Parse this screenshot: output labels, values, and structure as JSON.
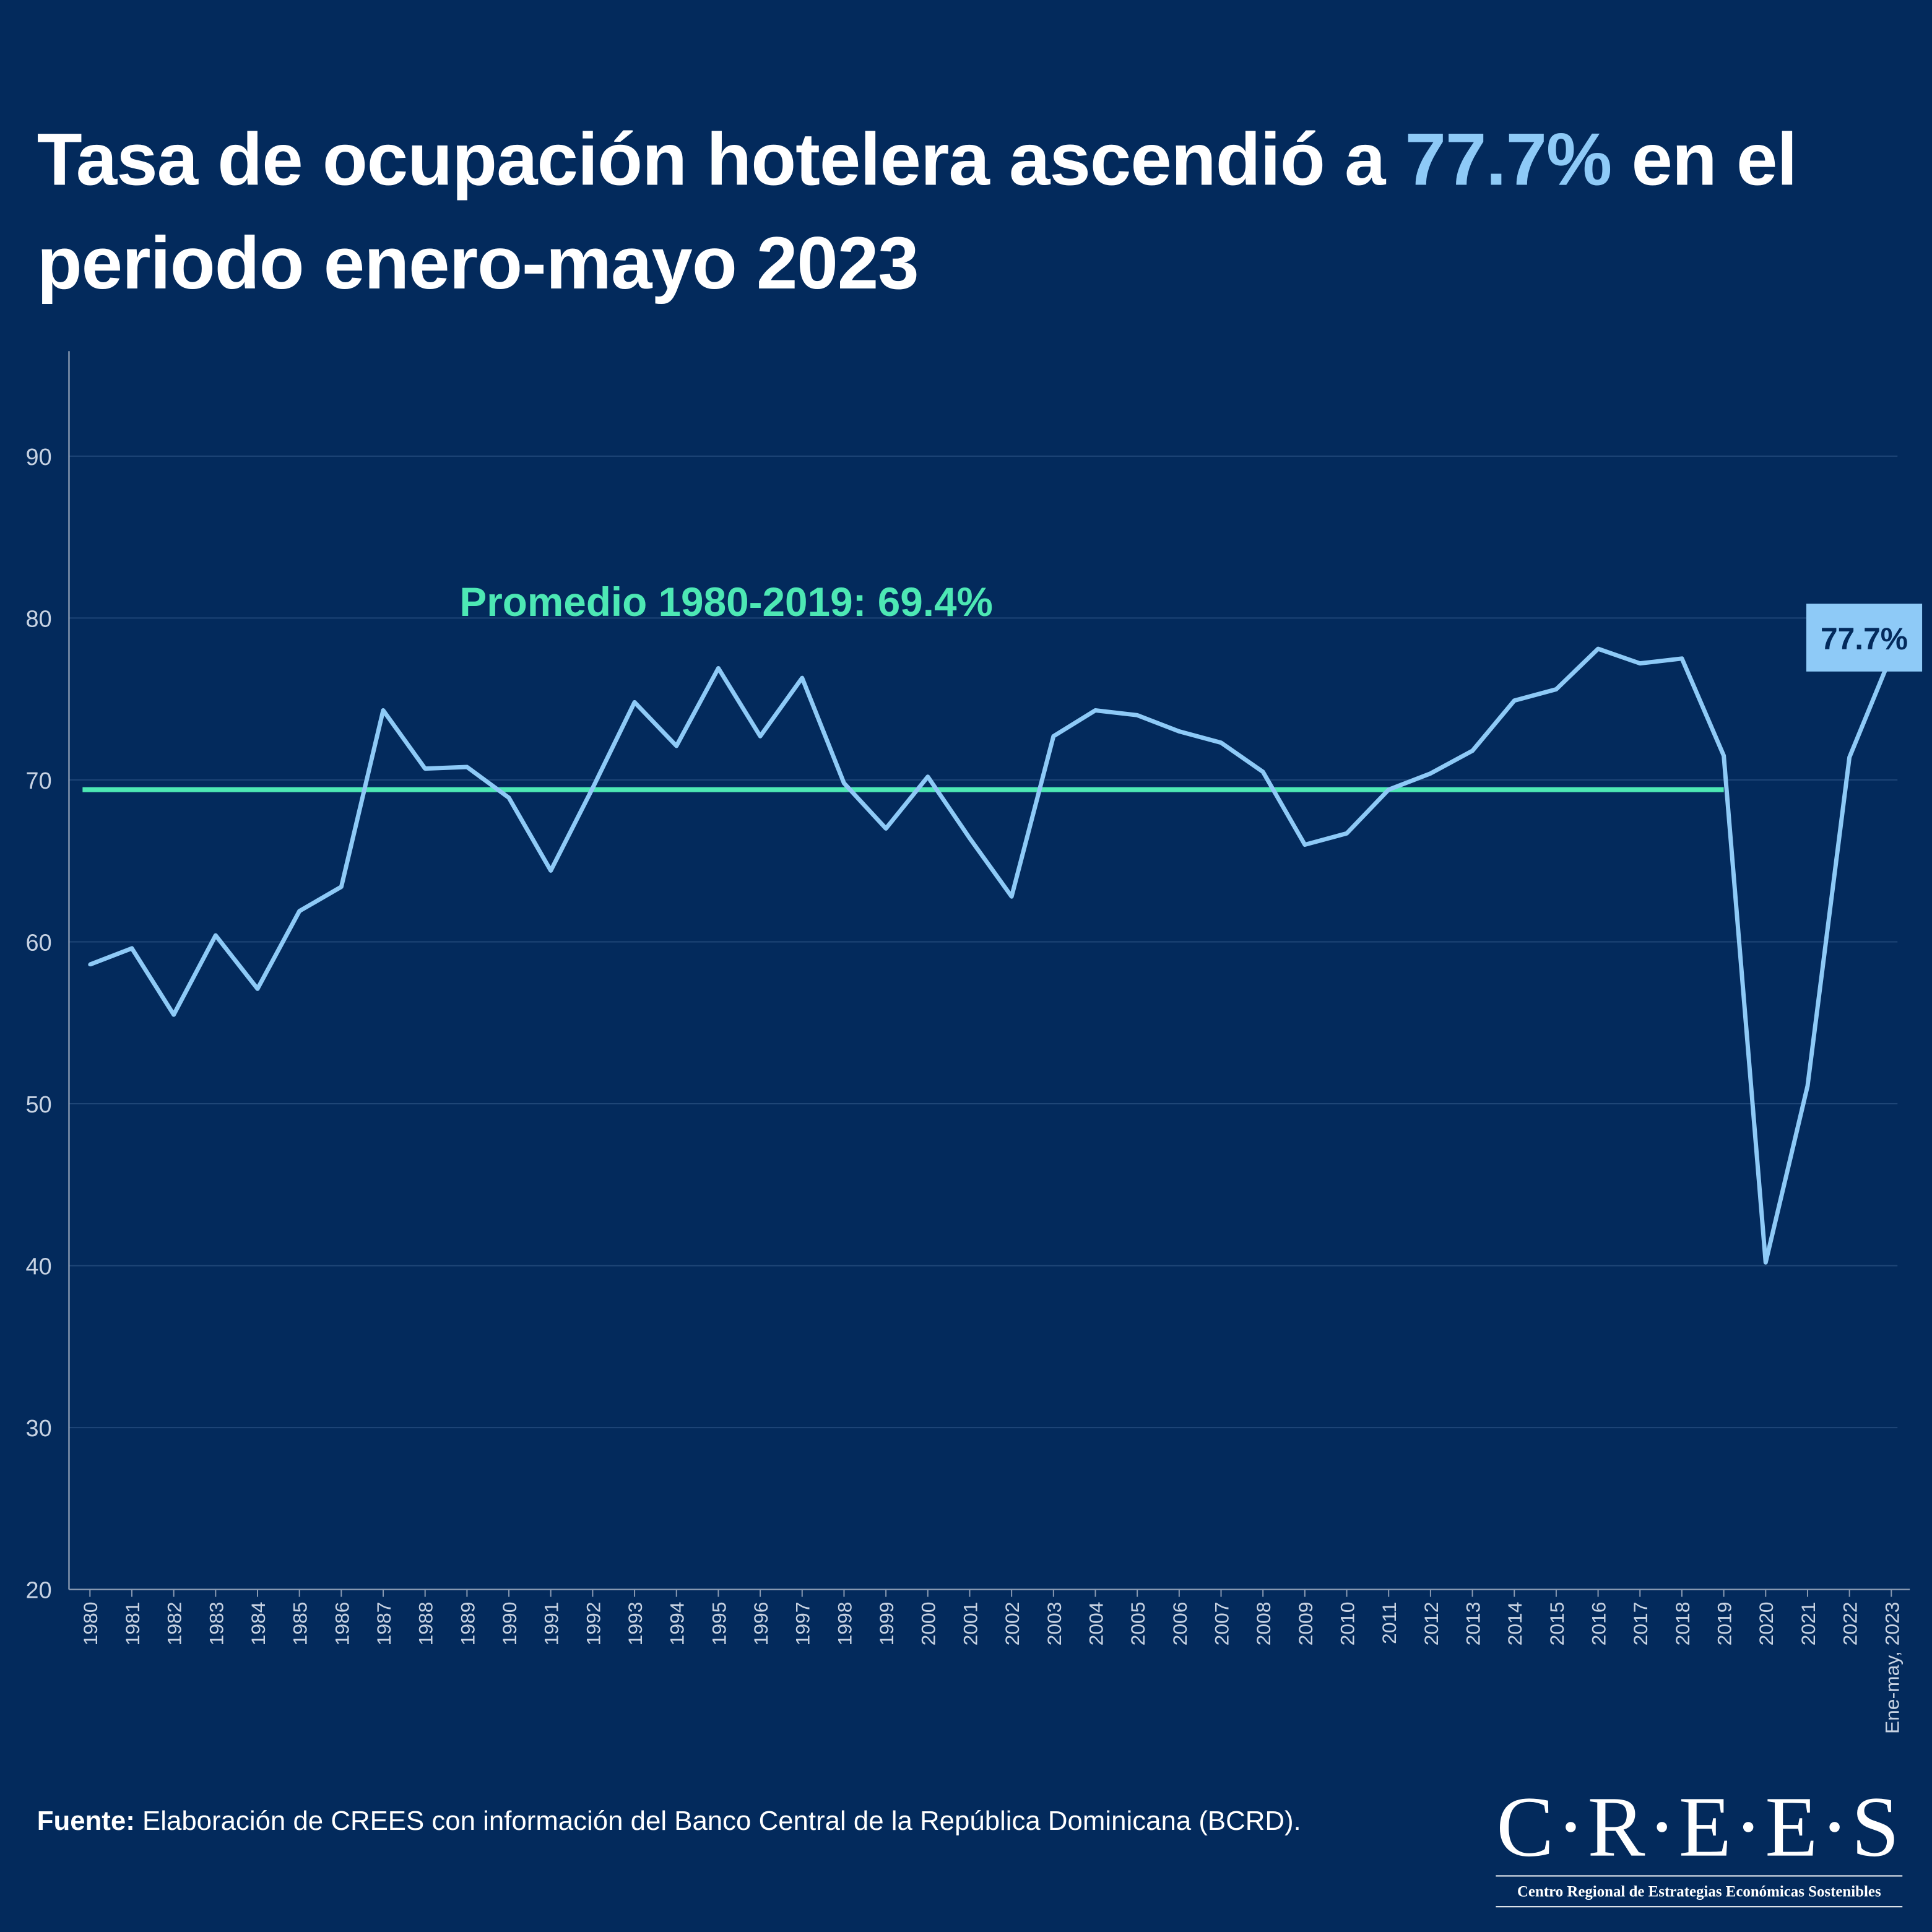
{
  "title": {
    "pre": "Tasa de ocupación hotelera ascendió a ",
    "highlight": "77.7%",
    "post": " en el periodo enero-mayo 2023"
  },
  "colors": {
    "background": "#032a5c",
    "line": "#8ecaf7",
    "average": "#4de8b4",
    "highlight": "#8ecaf7"
  },
  "chart_data": {
    "type": "line",
    "title": "",
    "xlabel": "",
    "ylabel": "",
    "ylim": [
      20,
      96
    ],
    "yticks": [
      20,
      30,
      40,
      50,
      60,
      70,
      80,
      90
    ],
    "grid": "horizontal",
    "categories": [
      "1980",
      "1981",
      "1982",
      "1983",
      "1984",
      "1985",
      "1986",
      "1987",
      "1988",
      "1989",
      "1990",
      "1991",
      "1992",
      "1993",
      "1994",
      "1995",
      "1996",
      "1997",
      "1998",
      "1999",
      "2000",
      "2001",
      "2002",
      "2003",
      "2004",
      "2005",
      "2006",
      "2007",
      "2008",
      "2009",
      "2010",
      "2011",
      "2012",
      "2013",
      "2014",
      "2015",
      "2016",
      "2017",
      "2018",
      "2019",
      "2020",
      "2021",
      "2022",
      "Ene-may, 2023"
    ],
    "series": [
      {
        "values": [
          58.6,
          59.6,
          55.5,
          60.4,
          57.1,
          61.9,
          63.4,
          74.3,
          70.7,
          70.8,
          68.9,
          64.4,
          69.5,
          74.8,
          72.1,
          76.9,
          72.7,
          76.3,
          69.8,
          67.0,
          70.2,
          66.4,
          62.8,
          72.7,
          74.3,
          74.0,
          73.0,
          72.3,
          70.5,
          66.0,
          66.7,
          69.4,
          70.4,
          71.8,
          74.9,
          75.6,
          78.1,
          77.2,
          77.5,
          71.5,
          40.2,
          51.1,
          71.4,
          77.7
        ]
      }
    ],
    "average": {
      "label": "Promedio 1980-2019: 69.4%",
      "value": 69.4,
      "from": "1980",
      "to": "2019"
    },
    "end_label": "77.7%"
  },
  "footer": {
    "source_label": "Fuente:",
    "source_text": " Elaboración de CREES con información del Banco Central de la República Dominicana (BCRD)."
  },
  "logo": {
    "name": "C·R·E·E·S",
    "subtitle": "Centro Regional de Estrategias Económicas Sostenibles"
  }
}
